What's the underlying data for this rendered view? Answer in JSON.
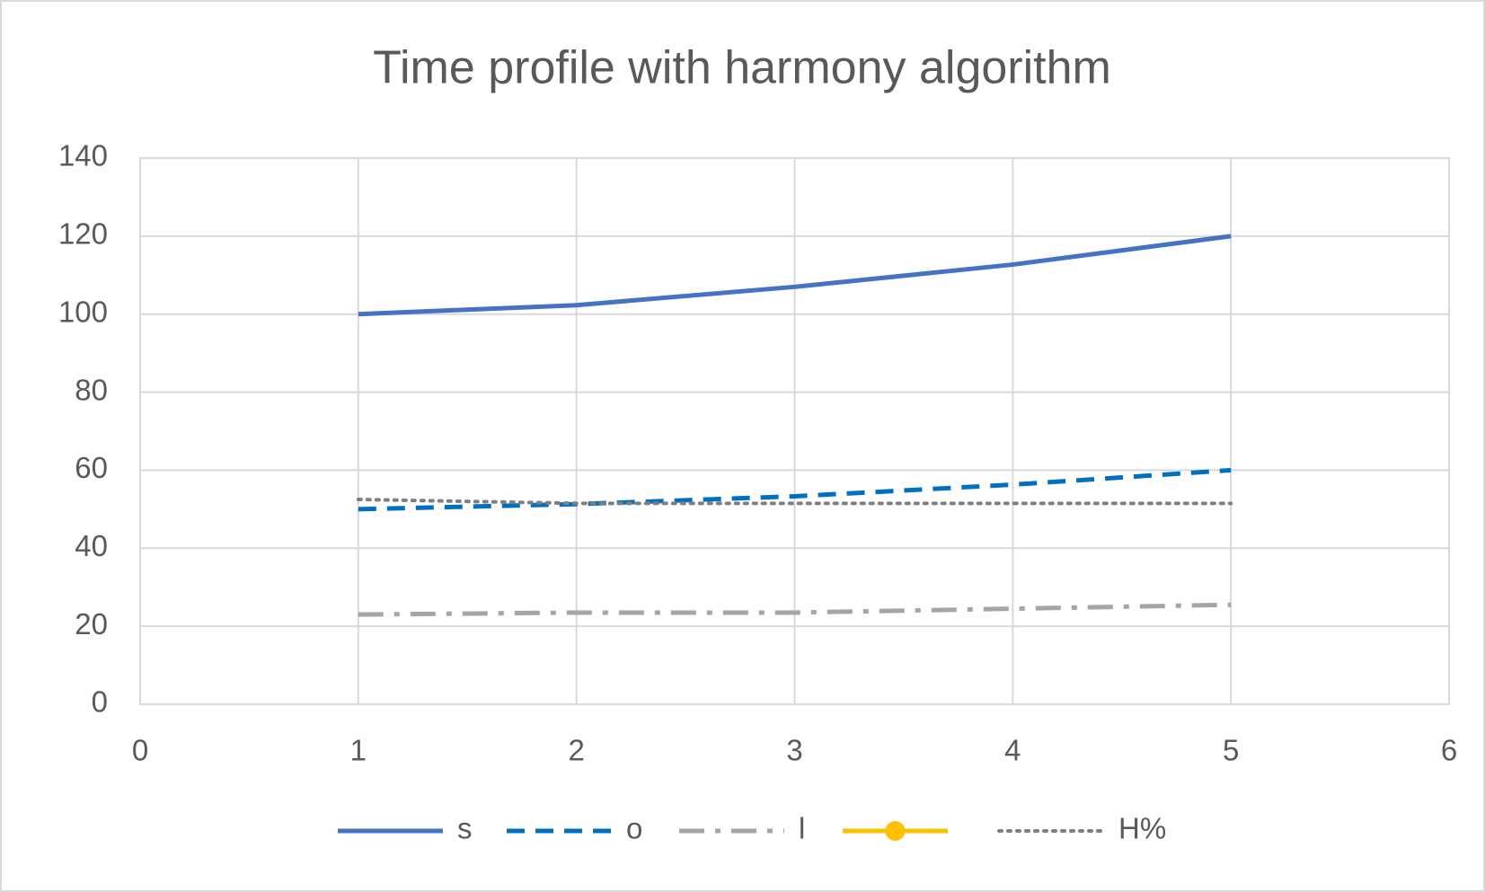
{
  "chart_data": {
    "type": "line",
    "title": "Time profile with harmony algorithm",
    "x": [
      1,
      2,
      3,
      4,
      5
    ],
    "series": [
      {
        "name": "s",
        "color": "#4472c4",
        "dash": "solid",
        "values": [
          100,
          102.3,
          107,
          112.7,
          120
        ]
      },
      {
        "name": "o",
        "color": "#0070c0",
        "dash": "dash",
        "values": [
          50,
          51.3,
          53.3,
          56.3,
          60
        ]
      },
      {
        "name": "l",
        "color": "#a5a5a5",
        "dash": "dashdot",
        "values": [
          23,
          23.5,
          23.5,
          24.5,
          25.5
        ]
      },
      {
        "color": "#ffc000",
        "dash": "solid",
        "marker": "circle",
        "values": [
          null,
          null,
          null,
          null,
          null
        ]
      },
      {
        "name": "H%",
        "color": "#7f7f7f",
        "dash": "dot",
        "values": [
          52.5,
          51.5,
          51.5,
          51.5,
          51.5
        ]
      }
    ],
    "xlim": [
      0,
      6
    ],
    "xticks": [
      0,
      1,
      2,
      3,
      4,
      5,
      6
    ],
    "ylim": [
      0,
      140
    ],
    "yticks": [
      0,
      20,
      40,
      60,
      80,
      100,
      120,
      140
    ],
    "grid": true,
    "legend": "bottom"
  }
}
